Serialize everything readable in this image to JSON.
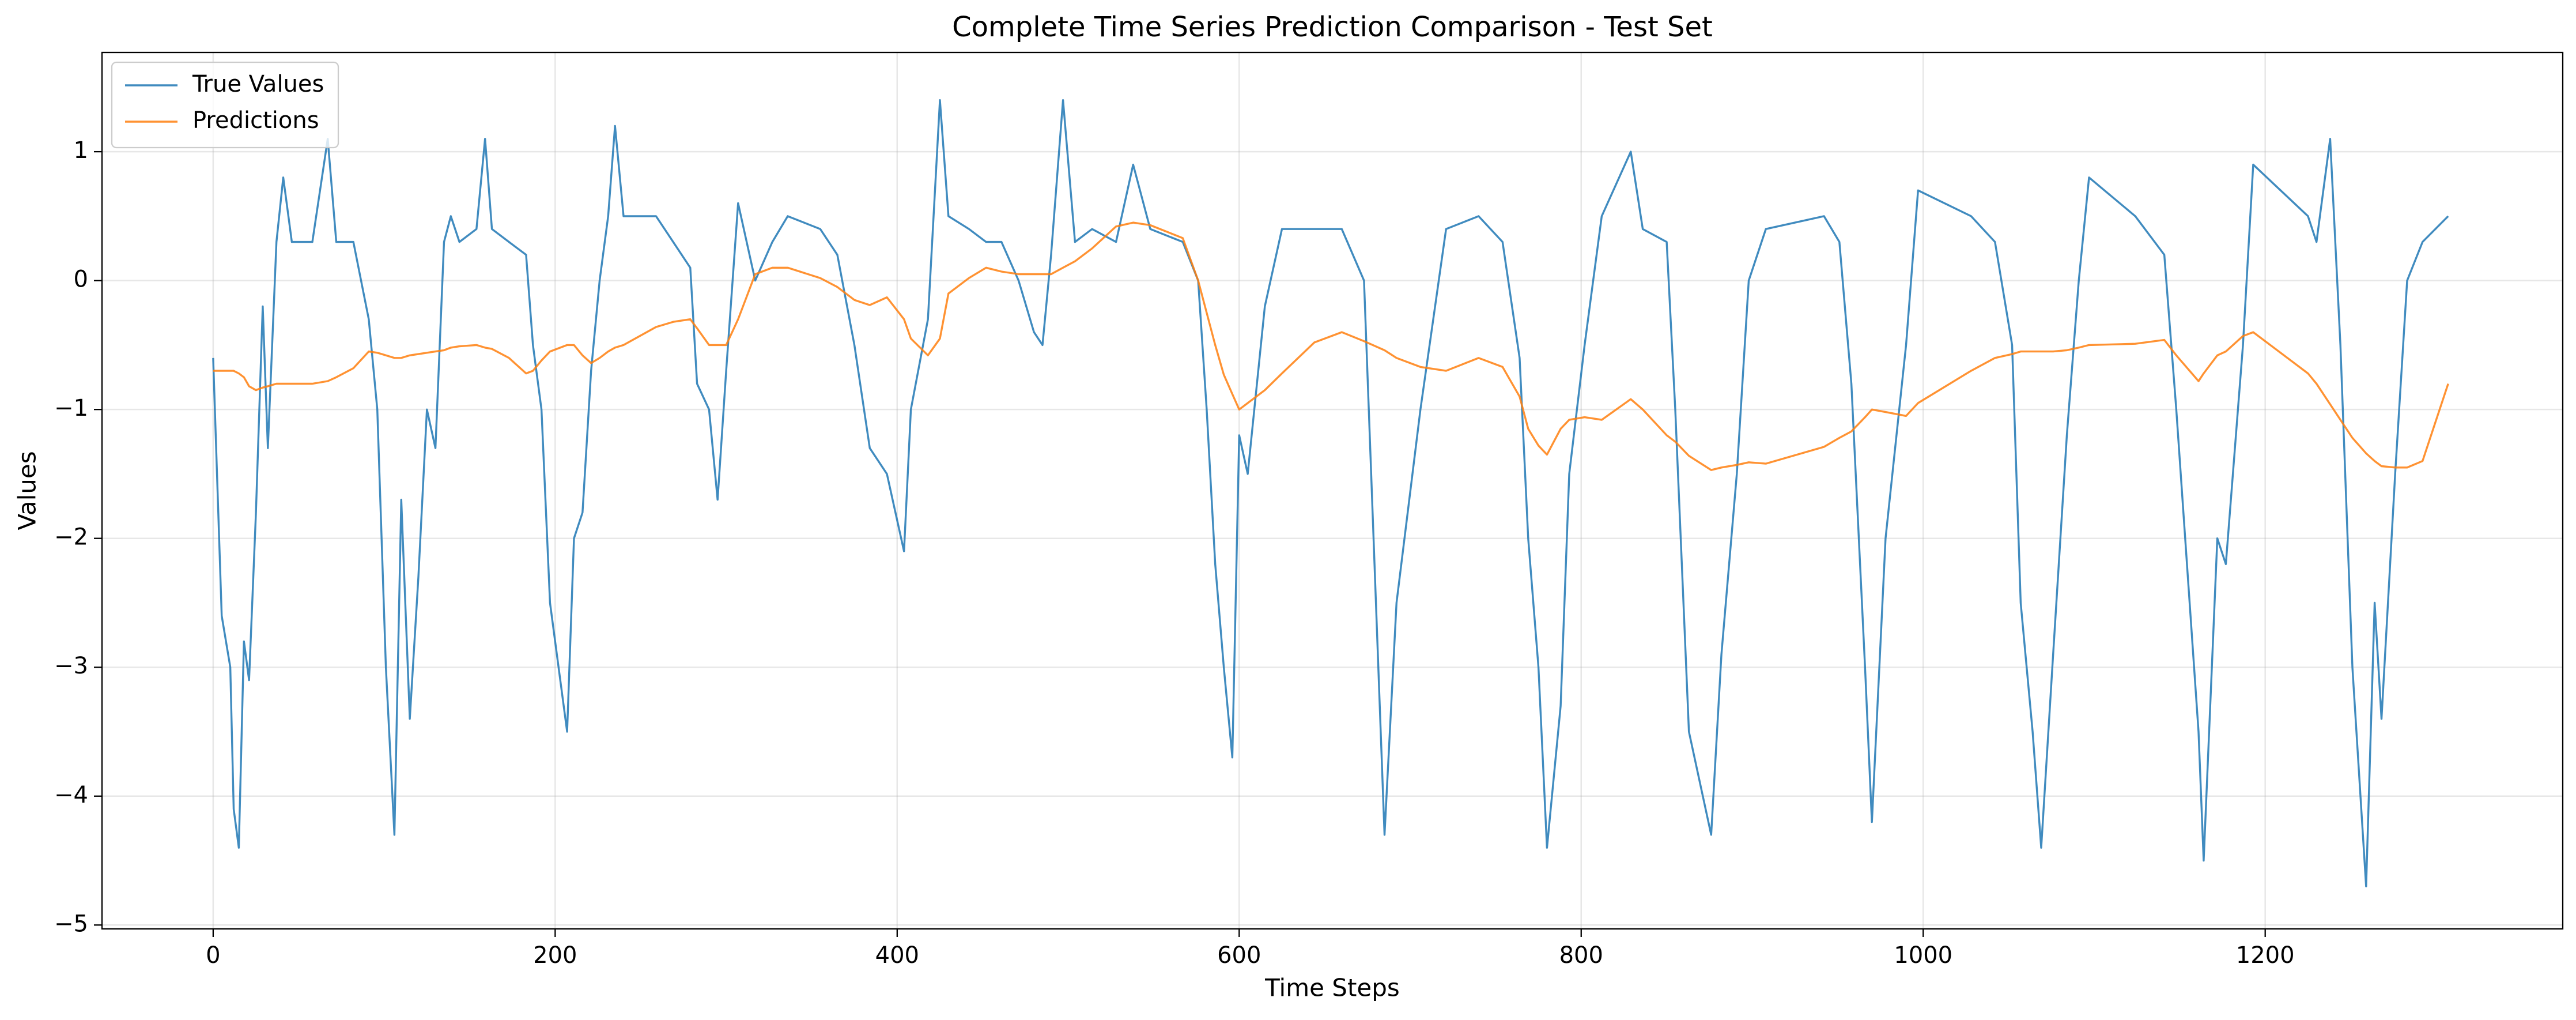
{
  "chart_data": {
    "type": "line",
    "title": "Complete Time Series Prediction Comparison - Test Set",
    "xlabel": "Time Steps",
    "ylabel": "Values",
    "x": [
      0,
      5,
      10,
      12,
      15,
      18,
      21,
      25,
      29,
      32,
      37,
      41,
      46,
      58,
      67,
      72,
      82,
      91,
      96,
      101,
      106,
      110,
      115,
      120,
      125,
      130,
      135,
      139,
      144,
      154,
      159,
      163,
      173,
      183,
      187,
      192,
      197,
      207,
      211,
      216,
      221,
      226,
      231,
      235,
      240,
      259,
      269,
      279,
      283,
      290,
      295,
      300,
      307,
      317,
      327,
      336,
      355,
      365,
      375,
      384,
      394,
      404,
      408,
      418,
      425,
      430,
      442,
      452,
      461,
      471,
      480,
      485,
      490,
      497,
      504,
      514,
      528,
      538,
      548,
      567,
      576,
      581,
      586,
      591,
      596,
      600,
      605,
      615,
      625,
      644,
      660,
      673,
      685,
      692,
      706,
      721,
      740,
      754,
      764,
      769,
      775,
      780,
      788,
      793,
      802,
      812,
      829,
      836,
      850,
      855,
      863,
      876,
      882,
      891,
      898,
      908,
      942,
      951,
      958,
      966,
      970,
      978,
      990,
      997,
      1028,
      1042,
      1052,
      1057,
      1064,
      1069,
      1076,
      1084,
      1091,
      1097,
      1124,
      1141,
      1148,
      1161,
      1164,
      1172,
      1177,
      1187,
      1193,
      1225,
      1230,
      1238,
      1244,
      1251,
      1259,
      1264,
      1268,
      1276,
      1283,
      1292,
      1307
    ],
    "series": [
      {
        "name": "True Values",
        "color": "#1f77b4",
        "values": [
          -0.6,
          -2.6,
          -3.0,
          -4.1,
          -4.4,
          -2.8,
          -3.1,
          -1.8,
          -0.2,
          -1.3,
          0.3,
          0.8,
          0.3,
          0.3,
          1.1,
          0.3,
          0.3,
          -0.3,
          -1.0,
          -3.0,
          -4.3,
          -1.7,
          -3.4,
          -2.3,
          -1.0,
          -1.3,
          0.3,
          0.5,
          0.3,
          0.4,
          1.1,
          0.4,
          0.3,
          0.2,
          -0.5,
          -1.0,
          -2.5,
          -3.5,
          -2.0,
          -1.8,
          -0.7,
          0.0,
          0.5,
          1.2,
          0.5,
          0.5,
          0.3,
          0.1,
          -0.8,
          -1.0,
          -1.7,
          -0.7,
          0.6,
          0.0,
          0.3,
          0.5,
          0.4,
          0.2,
          -0.5,
          -1.3,
          -1.5,
          -2.1,
          -1.0,
          -0.3,
          1.4,
          0.5,
          0.4,
          0.3,
          0.3,
          0.0,
          -0.4,
          -0.5,
          0.2,
          1.4,
          0.3,
          0.4,
          0.3,
          0.9,
          0.4,
          0.3,
          0.0,
          -1.0,
          -2.2,
          -3.0,
          -3.7,
          -1.2,
          -1.5,
          -0.2,
          0.4,
          0.4,
          0.4,
          0.0,
          -4.3,
          -2.5,
          -1.0,
          0.4,
          0.5,
          0.3,
          -0.6,
          -2.0,
          -3.0,
          -4.4,
          -3.3,
          -1.5,
          -0.5,
          0.5,
          1.0,
          0.4,
          0.3,
          -1.0,
          -3.5,
          -4.3,
          -2.9,
          -1.5,
          0.0,
          0.4,
          0.5,
          0.3,
          -0.8,
          -3.0,
          -4.2,
          -2.0,
          -0.5,
          0.7,
          0.5,
          0.3,
          -0.5,
          -2.5,
          -3.5,
          -4.4,
          -2.9,
          -1.2,
          0.0,
          0.8,
          0.5,
          0.2,
          -1.0,
          -3.5,
          -4.5,
          -2.0,
          -2.2,
          -0.5,
          0.9,
          0.5,
          0.3,
          1.1,
          -0.5,
          -3.0,
          -4.7,
          -2.5,
          -3.4,
          -1.5,
          0.0,
          0.3,
          0.5
        ]
      },
      {
        "name": "Predictions",
        "color": "#ff7f0e",
        "values": [
          -0.7,
          -0.7,
          -0.7,
          -0.7,
          -0.72,
          -0.75,
          -0.82,
          -0.85,
          -0.83,
          -0.82,
          -0.8,
          -0.8,
          -0.8,
          -0.8,
          -0.78,
          -0.75,
          -0.68,
          -0.55,
          -0.56,
          -0.58,
          -0.6,
          -0.6,
          -0.58,
          -0.57,
          -0.56,
          -0.55,
          -0.54,
          -0.52,
          -0.51,
          -0.5,
          -0.52,
          -0.53,
          -0.6,
          -0.72,
          -0.7,
          -0.62,
          -0.55,
          -0.5,
          -0.5,
          -0.58,
          -0.64,
          -0.6,
          -0.55,
          -0.52,
          -0.5,
          -0.36,
          -0.32,
          -0.3,
          -0.37,
          -0.5,
          -0.5,
          -0.5,
          -0.3,
          0.05,
          0.1,
          0.1,
          0.02,
          -0.05,
          -0.15,
          -0.19,
          -0.13,
          -0.3,
          -0.45,
          -0.58,
          -0.45,
          -0.1,
          0.02,
          0.1,
          0.07,
          0.05,
          0.05,
          0.05,
          0.05,
          0.1,
          0.15,
          0.25,
          0.42,
          0.45,
          0.43,
          0.33,
          0.0,
          -0.25,
          -0.5,
          -0.73,
          -0.88,
          -1.0,
          -0.95,
          -0.85,
          -0.72,
          -0.48,
          -0.4,
          -0.47,
          -0.54,
          -0.6,
          -0.67,
          -0.7,
          -0.6,
          -0.67,
          -0.9,
          -1.15,
          -1.28,
          -1.35,
          -1.15,
          -1.08,
          -1.06,
          -1.08,
          -0.92,
          -1.0,
          -1.2,
          -1.25,
          -1.36,
          -1.47,
          -1.45,
          -1.43,
          -1.41,
          -1.42,
          -1.29,
          -1.22,
          -1.17,
          -1.06,
          -1.0,
          -1.02,
          -1.05,
          -0.95,
          -0.7,
          -0.6,
          -0.57,
          -0.55,
          -0.55,
          -0.55,
          -0.55,
          -0.54,
          -0.52,
          -0.5,
          -0.49,
          -0.46,
          -0.58,
          -0.78,
          -0.72,
          -0.58,
          -0.55,
          -0.43,
          -0.4,
          -0.72,
          -0.8,
          -0.96,
          -1.08,
          -1.22,
          -1.34,
          -1.4,
          -1.44,
          -1.45,
          -1.45,
          -1.4,
          -0.8
        ]
      }
    ],
    "xlim": [
      -65,
      1374
    ],
    "ylim": [
      -5.03,
      1.77
    ],
    "xticks": [
      0,
      200,
      400,
      600,
      800,
      1000,
      1200
    ],
    "yticks": [
      {
        "value": -5,
        "label": "−5"
      },
      {
        "value": -4,
        "label": "−4"
      },
      {
        "value": -3,
        "label": "−3"
      },
      {
        "value": -2,
        "label": "−2"
      },
      {
        "value": -1,
        "label": "−1"
      },
      0,
      1
    ],
    "grid": true,
    "legend": "upper left"
  }
}
